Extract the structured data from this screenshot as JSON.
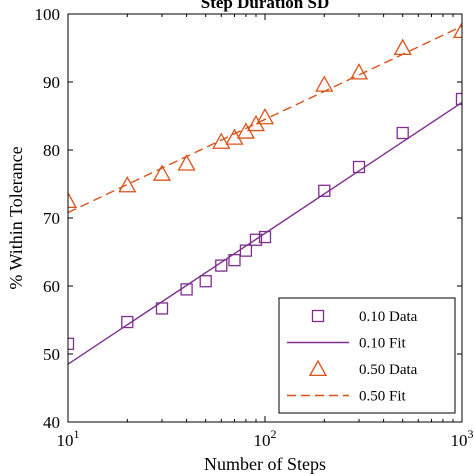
{
  "chart_data": {
    "type": "line",
    "title": "Step Duration SD",
    "xlabel": "Number of Steps",
    "ylabel": "% Within Tolerance",
    "xscale": "log",
    "xlim": [
      10,
      1000
    ],
    "ylim": [
      40,
      100
    ],
    "xticks": [
      {
        "value": 10,
        "base": "10",
        "exp": "1"
      },
      {
        "value": 100,
        "base": "10",
        "exp": "2"
      },
      {
        "value": 1000,
        "base": "10",
        "exp": "3"
      }
    ],
    "yticks": [
      40,
      50,
      60,
      70,
      80,
      90,
      100
    ],
    "grid": false,
    "legend_position": "bottom-right",
    "series": [
      {
        "name": "0.10 Data",
        "style": "square-markers",
        "color": "#7e2f8e",
        "x": [
          10,
          20,
          30,
          40,
          50,
          60,
          70,
          80,
          90,
          100,
          200,
          300,
          500,
          1000
        ],
        "y": [
          51.5,
          54.7,
          56.7,
          59.5,
          60.7,
          63.0,
          63.8,
          65.2,
          66.8,
          67.2,
          74.0,
          77.5,
          82.5,
          87.5
        ]
      },
      {
        "name": "0.10 Fit",
        "style": "solid-line",
        "color": "#7e2f8e",
        "x": [
          10,
          1000
        ],
        "y": [
          48.5,
          87.0
        ]
      },
      {
        "name": "0.50 Data",
        "style": "triangle-markers",
        "color": "#d95319",
        "x": [
          10,
          20,
          30,
          40,
          60,
          70,
          80,
          90,
          100,
          200,
          300,
          500,
          1000
        ],
        "y": [
          72.5,
          74.8,
          76.5,
          78.0,
          81.2,
          81.8,
          82.7,
          83.8,
          84.8,
          89.6,
          91.4,
          95.0,
          97.5
        ]
      },
      {
        "name": "0.50 Fit",
        "style": "dashed-line",
        "color": "#d95319",
        "x": [
          10,
          1000
        ],
        "y": [
          70.8,
          98.2
        ]
      }
    ]
  }
}
